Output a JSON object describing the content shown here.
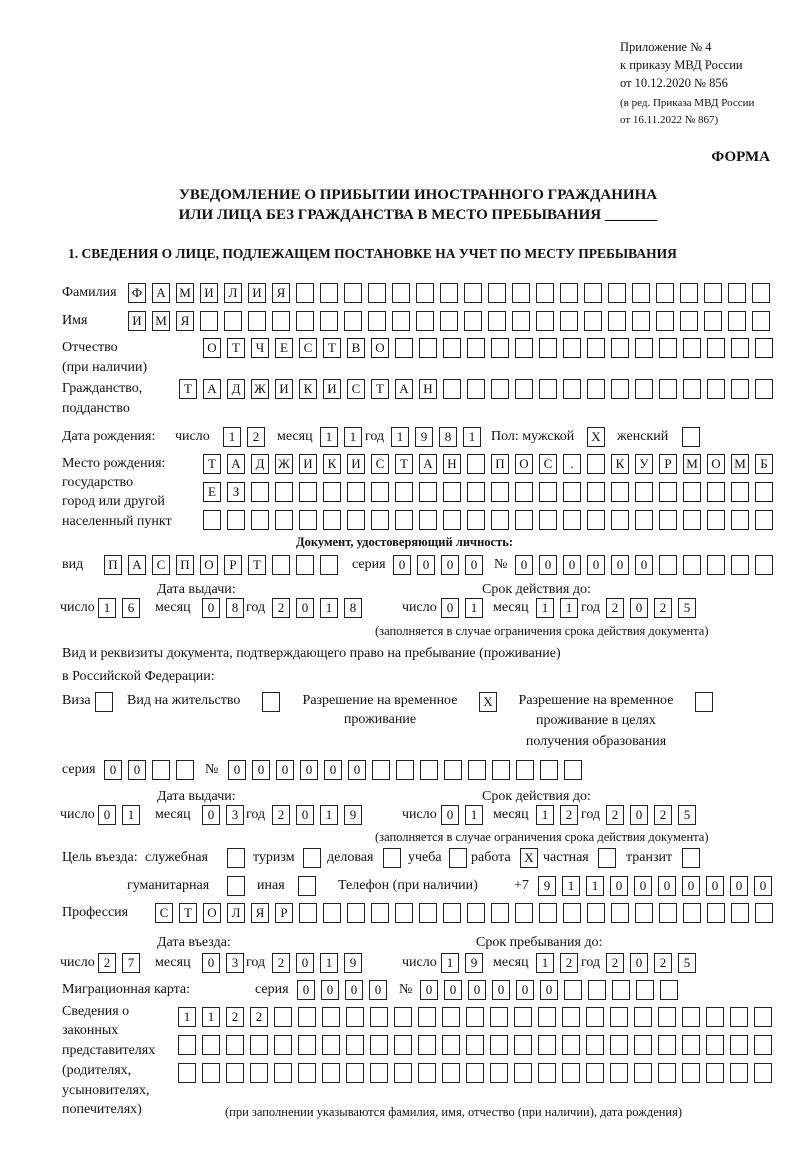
{
  "header": {
    "appendix_lines": [
      "Приложение № 4",
      "к приказу МВД России",
      "от 10.12.2020 № 856"
    ],
    "edition_lines": [
      "(в ред. Приказа МВД России",
      "от 16.11.2022 № 867)"
    ],
    "form_label": "ФОРМА",
    "title_line1": "УВЕДОМЛЕНИЕ О ПРИБЫТИИ ИНОСТРАННОГО ГРАЖДАНИНА",
    "title_line2": "ИЛИ ЛИЦА БЕЗ ГРАЖДАНСТВА В МЕСТО ПРЕБЫВАНИЯ",
    "title_blank": "_______"
  },
  "section1_title": "1. СВЕДЕНИЯ О ЛИЦЕ, ПОДЛЕЖАЩЕМ ПОСТАНОВКЕ НА УЧЕТ ПО МЕСТУ ПРЕБЫВАНИЯ",
  "person": {
    "surname": {
      "label": "Фамилия",
      "value": "ФАМИЛИЯ"
    },
    "name": {
      "label": "Имя",
      "value": "ИМЯ"
    },
    "patronymic": {
      "label": "Отчество",
      "label2": "(при наличии)",
      "value": "ОТЧЕСТВО"
    },
    "citizenship": {
      "label": "Гражданство,",
      "label2": "подданство",
      "value": "ТАДЖИКИСТАН"
    },
    "birth_date": {
      "label": "Дата рождения:",
      "day_label": "число",
      "day": "12",
      "month_label": "месяц",
      "month": "11",
      "year_label": "год",
      "year": "1981"
    },
    "sex": {
      "label": "Пол: мужской",
      "male": "X",
      "female_label": "женский",
      "female": ""
    },
    "birth_place": {
      "labels": [
        "Место рождения:",
        "государство",
        "город или другой",
        "населенный пункт"
      ],
      "rows": [
        "ТАДЖИКИСТАН ПОС. КУРМОМБ",
        "ЕЗ",
        ""
      ]
    }
  },
  "identity_doc": {
    "heading": "Документ, удостоверяющий личность:",
    "type_label": "вид",
    "type": "ПАСПОРТ",
    "series_label": "серия",
    "series": "0000",
    "number_label": "№",
    "number": "000000",
    "issue": {
      "heading": "Дата выдачи:",
      "day_label": "число",
      "day": "16",
      "month_label": "месяц",
      "month": "08",
      "year_label": "год",
      "year": "2018"
    },
    "valid": {
      "heading": "Срок действия до:",
      "day_label": "число",
      "day": "01",
      "month_label": "месяц",
      "month": "11",
      "year_label": "год",
      "year": "2025"
    },
    "note": "(заполняется в случае ограничения срока действия документа)"
  },
  "residence_doc": {
    "heading1": "Вид и реквизиты документа, подтверждающего право на пребывание (проживание)",
    "heading2": "в Российской Федерации:",
    "visa": {
      "label": "Виза",
      "checked": ""
    },
    "residence_permit": {
      "label": "Вид на жительство",
      "checked": ""
    },
    "temp_residence": {
      "label1": "Разрешение на временное",
      "label2": "проживание",
      "checked": "X"
    },
    "temp_residence_edu": {
      "label1": "Разрешение на временное",
      "label2": "проживание в целях",
      "label3": "получения образования",
      "checked": ""
    },
    "series_label": "серия",
    "series": "00",
    "number_label": "№",
    "number": "000000",
    "issue": {
      "heading": "Дата выдачи:",
      "day_label": "число",
      "day": "01",
      "month_label": "месяц",
      "month": "03",
      "year_label": "год",
      "year": "2019"
    },
    "valid": {
      "heading": "Срок действия до:",
      "day_label": "число",
      "day": "01",
      "month_label": "месяц",
      "month": "12",
      "year_label": "год",
      "year": "2025"
    },
    "note": "(заполняется в случае ограничения срока действия документа)"
  },
  "purpose": {
    "label": "Цель въезда:",
    "options": [
      {
        "label": "служебная",
        "checked": ""
      },
      {
        "label": "туризм",
        "checked": ""
      },
      {
        "label": "деловая",
        "checked": ""
      },
      {
        "label": "учеба",
        "checked": ""
      },
      {
        "label": "работа",
        "checked": "X"
      },
      {
        "label": "частная",
        "checked": ""
      },
      {
        "label": "транзит",
        "checked": ""
      },
      {
        "label": "гуманитарная",
        "checked": ""
      },
      {
        "label": "иная",
        "checked": ""
      }
    ]
  },
  "phone": {
    "label": "Телефон (при наличии)",
    "prefix": "+7",
    "value": "9110000000"
  },
  "profession": {
    "label": "Профессия",
    "value": "СТОЛЯР"
  },
  "entry": {
    "entry_date": {
      "heading": "Дата въезда:",
      "day_label": "число",
      "day": "27",
      "month_label": "месяц",
      "month": "03",
      "year_label": "год",
      "year": "2019"
    },
    "stay_until": {
      "heading": "Срок пребывания до:",
      "day_label": "число",
      "day": "19",
      "month_label": "месяц",
      "month": "12",
      "year_label": "год",
      "year": "2025"
    }
  },
  "migration_card": {
    "label": "Миграционная карта:",
    "series_label": "серия",
    "series": "0000",
    "number_label": "№",
    "number": "000000"
  },
  "representatives": {
    "labels": [
      "Сведения о",
      "законных",
      "представителях",
      "(родителях,",
      "усыновителях,",
      "попечителях)"
    ],
    "rows": [
      "1122",
      "",
      ""
    ],
    "note": "(при заполнении указываются фамилия, имя, отчество (при наличии), дата рождения)"
  }
}
